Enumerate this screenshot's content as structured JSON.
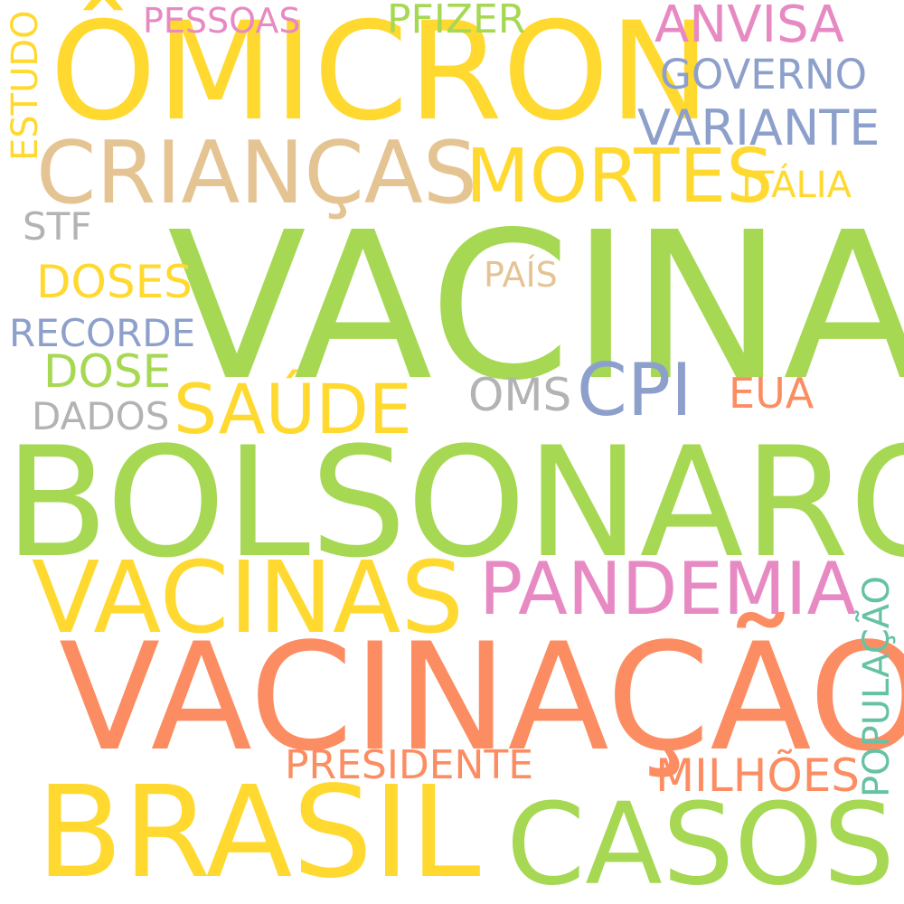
{
  "palette": {
    "green": "#a6d854",
    "yellow": "#ffd92f",
    "orange": "#fc8d62",
    "pink": "#e78ac3",
    "blue": "#8da0cb",
    "tan": "#e5c494",
    "gray": "#b3b3b3",
    "teal": "#66c2a5"
  },
  "words": {
    "omicron": {
      "text": "ÔMICRON",
      "color": "#ffd92f"
    },
    "vacina": {
      "text": "VACINA",
      "color": "#a6d854"
    },
    "bolsonaro": {
      "text": "BOLSONARO",
      "color": "#a6d854"
    },
    "vacinacao": {
      "text": "VACINAÇÃO",
      "color": "#fc8d62"
    },
    "brasil": {
      "text": "BRASIL",
      "color": "#ffd92f"
    },
    "casos": {
      "text": "CASOS",
      "color": "#a6d854"
    },
    "vacinas": {
      "text": "VACINAS",
      "color": "#ffd92f"
    },
    "criancas": {
      "text": "CRIANÇAS",
      "color": "#e5c494"
    },
    "pandemia": {
      "text": "PANDEMIA",
      "color": "#e78ac3"
    },
    "mortes": {
      "text": "MORTES",
      "color": "#ffd92f"
    },
    "saude": {
      "text": "SAÚDE",
      "color": "#ffd92f"
    },
    "cpi": {
      "text": "CPI",
      "color": "#8da0cb"
    },
    "variante": {
      "text": "VARIANTE",
      "color": "#8da0cb"
    },
    "anvisa": {
      "text": "ANVISA",
      "color": "#e78ac3"
    },
    "governo": {
      "text": "GOVERNO",
      "color": "#8da0cb"
    },
    "milhoes": {
      "text": "MILHÕES",
      "color": "#fc8d62"
    },
    "presidente": {
      "text": "PRESIDENTE",
      "color": "#fc8d62"
    },
    "oms": {
      "text": "OMS",
      "color": "#b3b3b3"
    },
    "eua": {
      "text": "EUA",
      "color": "#fc8d62"
    },
    "doses": {
      "text": "DOSES",
      "color": "#ffd92f"
    },
    "dose": {
      "text": "DOSE",
      "color": "#a6d854"
    },
    "recorde": {
      "text": "RECORDE",
      "color": "#8da0cb"
    },
    "dados": {
      "text": "DADOS",
      "color": "#b3b3b3"
    },
    "stf": {
      "text": "STF",
      "color": "#b3b3b3"
    },
    "pfizer": {
      "text": "PFIZER",
      "color": "#a6d854"
    },
    "pessoas": {
      "text": "PESSOAS",
      "color": "#e78ac3"
    },
    "italia": {
      "text": "ITÁLIA",
      "color": "#ffd92f"
    },
    "pais": {
      "text": "PAÍS",
      "color": "#e5c494"
    },
    "estudo": {
      "text": "ESTUDO",
      "color": "#ffd92f"
    },
    "populacao": {
      "text": "POPULAÇÃO",
      "color": "#66c2a5"
    }
  }
}
